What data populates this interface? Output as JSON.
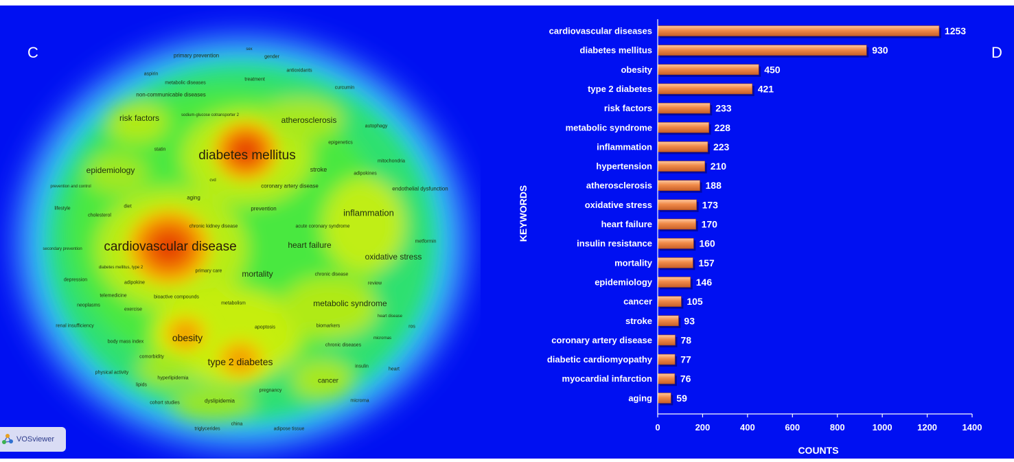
{
  "panels": {
    "left_label": "C",
    "right_label": "D"
  },
  "vosviewer": {
    "logo_text": "VOSviewer",
    "terms": [
      {
        "text": "primary prevention",
        "size": 8
      },
      {
        "text": "sex",
        "size": 6
      },
      {
        "text": "gender",
        "size": 7
      },
      {
        "text": "aspirin",
        "size": 7
      },
      {
        "text": "antioxidants",
        "size": 7
      },
      {
        "text": "metabolic diseases",
        "size": 7
      },
      {
        "text": "treatment",
        "size": 7
      },
      {
        "text": "curcumin",
        "size": 7
      },
      {
        "text": "non-communicable diseases",
        "size": 8
      },
      {
        "text": "risk factors",
        "size": 12
      },
      {
        "text": "sodium-glucose cotransporter 2",
        "size": 6
      },
      {
        "text": "atherosclerosis",
        "size": 12
      },
      {
        "text": "autophagy",
        "size": 7
      },
      {
        "text": "epigenetics",
        "size": 7
      },
      {
        "text": "statin",
        "size": 7
      },
      {
        "text": "diabetes mellitus",
        "size": 19
      },
      {
        "text": "mitochondria",
        "size": 7
      },
      {
        "text": "epidemiology",
        "size": 12
      },
      {
        "text": "stroke",
        "size": 9
      },
      {
        "text": "adipokines",
        "size": 7
      },
      {
        "text": "prevention and control",
        "size": 6
      },
      {
        "text": "cvd",
        "size": 6
      },
      {
        "text": "coronary artery disease",
        "size": 8
      },
      {
        "text": "endothelial dysfunction",
        "size": 8
      },
      {
        "text": "aging",
        "size": 8
      },
      {
        "text": "lifestyle",
        "size": 7
      },
      {
        "text": "diet",
        "size": 7
      },
      {
        "text": "cholesterol",
        "size": 7
      },
      {
        "text": "prevention",
        "size": 8
      },
      {
        "text": "inflammation",
        "size": 13
      },
      {
        "text": "chronic kidney disease",
        "size": 7
      },
      {
        "text": "acute coronary syndrome",
        "size": 7
      },
      {
        "text": "metformin",
        "size": 7
      },
      {
        "text": "secondary prevention",
        "size": 6
      },
      {
        "text": "cardiovascular disease",
        "size": 19
      },
      {
        "text": "heart failure",
        "size": 12
      },
      {
        "text": "oxidative stress",
        "size": 12
      },
      {
        "text": "diabetes mellitus, type 2",
        "size": 6
      },
      {
        "text": "primary care",
        "size": 7
      },
      {
        "text": "mortality",
        "size": 12
      },
      {
        "text": "chronic disease",
        "size": 7
      },
      {
        "text": "depression",
        "size": 7
      },
      {
        "text": "adipokine",
        "size": 7
      },
      {
        "text": "review",
        "size": 7
      },
      {
        "text": "telemedicine",
        "size": 7
      },
      {
        "text": "bioactive compounds",
        "size": 7
      },
      {
        "text": "neoplasms",
        "size": 7
      },
      {
        "text": "exercise",
        "size": 7
      },
      {
        "text": "metabolism",
        "size": 7
      },
      {
        "text": "metabolic syndrome",
        "size": 12
      },
      {
        "text": "heart disease",
        "size": 6
      },
      {
        "text": "renal insufficiency",
        "size": 7
      },
      {
        "text": "apoptosis",
        "size": 7
      },
      {
        "text": "biomarkers",
        "size": 7
      },
      {
        "text": "ros",
        "size": 7
      },
      {
        "text": "obesity",
        "size": 14
      },
      {
        "text": "micrornas",
        "size": 6
      },
      {
        "text": "body mass index",
        "size": 7
      },
      {
        "text": "chronic diseases",
        "size": 7
      },
      {
        "text": "comorbidity",
        "size": 7
      },
      {
        "text": "type 2 diabetes",
        "size": 14
      },
      {
        "text": "insulin",
        "size": 7
      },
      {
        "text": "heart",
        "size": 7
      },
      {
        "text": "physical activity",
        "size": 7
      },
      {
        "text": "hyperlipidemia",
        "size": 7
      },
      {
        "text": "cancer",
        "size": 10
      },
      {
        "text": "lipids",
        "size": 7
      },
      {
        "text": "pregnancy",
        "size": 7
      },
      {
        "text": "cohort studies",
        "size": 7
      },
      {
        "text": "dyslipidemia",
        "size": 8
      },
      {
        "text": "microrna",
        "size": 7
      },
      {
        "text": "triglycerides",
        "size": 7
      },
      {
        "text": "china",
        "size": 7
      },
      {
        "text": "adipose tissue",
        "size": 7
      }
    ],
    "hotspots": [
      {
        "label": "cardiovascular disease",
        "intensity": 1.0
      },
      {
        "label": "diabetes mellitus",
        "intensity": 0.9
      },
      {
        "label": "obesity",
        "intensity": 0.6
      },
      {
        "label": "type 2 diabetes",
        "intensity": 0.6
      }
    ],
    "colors": {
      "background": "#0010f2",
      "hot": "#e03000",
      "warm": "#f2b800",
      "mid": "#c8ee10",
      "cool": "#28e050",
      "edge": "#20d8d8"
    }
  },
  "chart_data": {
    "type": "bar",
    "orientation": "horizontal",
    "categories": [
      "cardiovascular diseases",
      "diabetes mellitus",
      "obesity",
      "type 2 diabetes",
      "risk factors",
      "metabolic syndrome",
      "inflammation",
      "hypertension",
      "atherosclerosis",
      "oxidative stress",
      "heart failure",
      "insulin resistance",
      "mortality",
      "epidemiology",
      "cancer",
      "stroke",
      "coronary artery disease",
      "diabetic cardiomyopathy",
      "myocardial infarction",
      "aging"
    ],
    "values": [
      1253,
      930,
      450,
      421,
      233,
      228,
      223,
      210,
      188,
      173,
      170,
      160,
      157,
      146,
      105,
      93,
      78,
      77,
      76,
      59
    ],
    "xlabel": "COUNTS",
    "ylabel": "KEYWORDS",
    "xlim": [
      0,
      1400
    ],
    "xticks": [
      0,
      200,
      400,
      600,
      800,
      1000,
      1200,
      1400
    ],
    "grid": false,
    "bar_color": "#f08a48",
    "text_color": "#ffffff"
  }
}
